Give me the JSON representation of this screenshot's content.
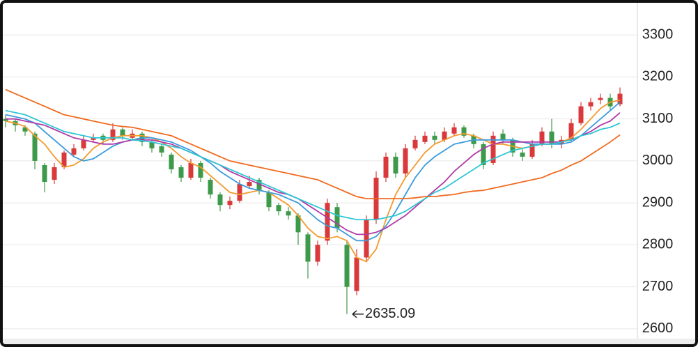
{
  "chart_data": {
    "type": "candlestick",
    "up_color": "#d9393a",
    "down_color": "#3d9a4a",
    "open": [
      3100,
      3095,
      3080,
      3065,
      2990,
      2955,
      2985,
      3015,
      3030,
      3050,
      3060,
      3050,
      3075,
      3055,
      3065,
      3045,
      3035,
      3015,
      2985,
      2960,
      2995,
      2955,
      2920,
      2895,
      2905,
      2940,
      2955,
      2925,
      2895,
      2880,
      2870,
      2825,
      2760,
      2810,
      2890,
      2800,
      2690,
      2770,
      2860,
      2960,
      3010,
      2970,
      3030,
      3045,
      3060,
      3050,
      3065,
      3080,
      3060,
      3040,
      2995,
      3065,
      3050,
      3020,
      3010,
      3040,
      3070,
      3040,
      3050,
      3090,
      3130,
      3145,
      3150,
      3135
    ],
    "high": [
      3110,
      3100,
      3085,
      3070,
      2995,
      2995,
      3025,
      3040,
      3060,
      3065,
      3065,
      3090,
      3080,
      3075,
      3070,
      3050,
      3040,
      3020,
      2990,
      3005,
      3000,
      2960,
      2925,
      2915,
      2955,
      2965,
      2960,
      2930,
      2900,
      2890,
      2875,
      2830,
      2810,
      2910,
      2900,
      2810,
      2790,
      2870,
      2975,
      3020,
      3020,
      3040,
      3060,
      3070,
      3070,
      3080,
      3090,
      3085,
      3065,
      3045,
      3070,
      3075,
      3055,
      3030,
      3050,
      3080,
      3100,
      3060,
      3100,
      3140,
      3150,
      3160,
      3160,
      3175
    ],
    "low": [
      3080,
      3070,
      3060,
      2980,
      2925,
      2945,
      2980,
      3010,
      3025,
      3045,
      3040,
      3045,
      3050,
      3050,
      3035,
      3020,
      3010,
      2970,
      2950,
      2955,
      2950,
      2910,
      2880,
      2885,
      2900,
      2935,
      2920,
      2880,
      2870,
      2860,
      2800,
      2720,
      2750,
      2800,
      2830,
      2635.09,
      2680,
      2760,
      2850,
      2950,
      2960,
      2960,
      3025,
      3040,
      3040,
      3045,
      3060,
      3055,
      3030,
      2980,
      2990,
      3040,
      3010,
      3000,
      3005,
      3035,
      3030,
      3030,
      3045,
      3085,
      3120,
      3135,
      3120,
      3130
    ],
    "close": [
      3095,
      3085,
      3070,
      3000,
      2950,
      2985,
      3020,
      3030,
      3050,
      3055,
      3050,
      3075,
      3060,
      3065,
      3045,
      3030,
      3020,
      2980,
      2960,
      2995,
      2960,
      2920,
      2895,
      2905,
      2945,
      2950,
      2930,
      2890,
      2880,
      2870,
      2830,
      2760,
      2800,
      2900,
      2840,
      2700,
      2770,
      2860,
      2960,
      3010,
      2970,
      3030,
      3050,
      3060,
      3050,
      3070,
      3080,
      3060,
      3040,
      2990,
      3060,
      3050,
      3020,
      3010,
      3040,
      3070,
      3040,
      3050,
      3090,
      3130,
      3140,
      3150,
      3130,
      3160
    ],
    "moving_averages": [
      {
        "color": "#f39a2e",
        "values": [
          3095,
          3090,
          3082,
          3060,
          3040,
          3010,
          2985,
          2990,
          3005,
          3030,
          3045,
          3055,
          3060,
          3060,
          3060,
          3055,
          3045,
          3030,
          3010,
          2995,
          2985,
          2965,
          2945,
          2925,
          2920,
          2925,
          2930,
          2925,
          2910,
          2895,
          2870,
          2840,
          2820,
          2815,
          2820,
          2810,
          2770,
          2760,
          2790,
          2860,
          2920,
          2960,
          2990,
          3020,
          3040,
          3050,
          3060,
          3065,
          3060,
          3050,
          3040,
          3040,
          3035,
          3030,
          3035,
          3040,
          3040,
          3045,
          3055,
          3075,
          3100,
          3125,
          3140,
          3145
        ]
      },
      {
        "color": "#3a9bdc",
        "values": [
          3110,
          3105,
          3100,
          3090,
          3070,
          3050,
          3030,
          3010,
          3000,
          3005,
          3020,
          3035,
          3045,
          3050,
          3055,
          3055,
          3050,
          3045,
          3035,
          3025,
          3010,
          2995,
          2975,
          2960,
          2945,
          2935,
          2930,
          2925,
          2920,
          2910,
          2900,
          2880,
          2860,
          2845,
          2840,
          2825,
          2810,
          2810,
          2820,
          2845,
          2880,
          2920,
          2960,
          2990,
          3010,
          3025,
          3040,
          3045,
          3050,
          3050,
          3050,
          3050,
          3050,
          3045,
          3040,
          3040,
          3040,
          3040,
          3045,
          3060,
          3080,
          3100,
          3120,
          3140
        ]
      },
      {
        "color": "#b03aa8",
        "values": [
          3100,
          3100,
          3095,
          3090,
          3085,
          3075,
          3065,
          3055,
          3050,
          3045,
          3040,
          3040,
          3045,
          3050,
          3050,
          3050,
          3045,
          3040,
          3030,
          3020,
          3010,
          3000,
          2990,
          2975,
          2965,
          2955,
          2945,
          2935,
          2925,
          2920,
          2910,
          2895,
          2880,
          2865,
          2850,
          2835,
          2825,
          2825,
          2830,
          2840,
          2855,
          2870,
          2890,
          2910,
          2930,
          2950,
          2975,
          2995,
          3015,
          3030,
          3040,
          3045,
          3045,
          3045,
          3045,
          3045,
          3045,
          3045,
          3050,
          3060,
          3070,
          3085,
          3095,
          3115
        ]
      },
      {
        "color": "#2ec6d4",
        "values": [
          3120,
          3115,
          3110,
          3100,
          3090,
          3080,
          3070,
          3065,
          3060,
          3055,
          3055,
          3055,
          3055,
          3050,
          3048,
          3045,
          3040,
          3035,
          3030,
          3020,
          3010,
          3000,
          2990,
          2980,
          2970,
          2960,
          2950,
          2940,
          2930,
          2920,
          2910,
          2900,
          2890,
          2880,
          2870,
          2865,
          2860,
          2860,
          2860,
          2865,
          2870,
          2880,
          2895,
          2910,
          2925,
          2935,
          2950,
          2965,
          2980,
          2995,
          3005,
          3015,
          3025,
          3030,
          3035,
          3040,
          3040,
          3045,
          3050,
          3060,
          3065,
          3075,
          3080,
          3090
        ]
      },
      {
        "color": "#f06a1e",
        "values": [
          3170,
          3160,
          3150,
          3140,
          3130,
          3120,
          3110,
          3105,
          3100,
          3095,
          3090,
          3085,
          3082,
          3080,
          3075,
          3070,
          3065,
          3060,
          3050,
          3040,
          3030,
          3020,
          3010,
          3000,
          2995,
          2990,
          2985,
          2980,
          2975,
          2970,
          2965,
          2960,
          2955,
          2945,
          2935,
          2925,
          2915,
          2910,
          2910,
          2910,
          2910,
          2910,
          2912,
          2915,
          2915,
          2918,
          2920,
          2925,
          2928,
          2930,
          2935,
          2940,
          2945,
          2950,
          2955,
          2960,
          2970,
          2978,
          2990,
          3000,
          3015,
          3030,
          3045,
          3062
        ]
      }
    ],
    "ylim": [
      2570,
      3375
    ],
    "yticks": [
      2600,
      2700,
      2800,
      2900,
      3000,
      3100,
      3200,
      3300
    ],
    "grid": true
  }
}
